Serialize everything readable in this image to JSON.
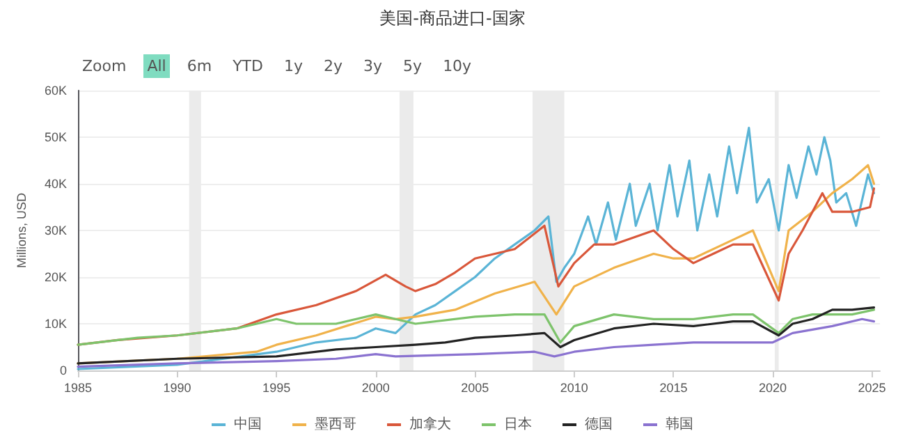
{
  "chart_data": {
    "type": "line",
    "title": "美国-商品进口-国家",
    "ylabel": "Millions, USD",
    "annotations": [
      "Zoom",
      "All",
      "6m",
      "YTD",
      "1y",
      "2y",
      "3y",
      "5y",
      "10y"
    ],
    "xlim": [
      1985,
      2025.4
    ],
    "xticks": [
      1985,
      1990,
      1995,
      2000,
      2005,
      2010,
      2015,
      2020,
      2025
    ],
    "ylim": [
      0,
      60000
    ],
    "yticks": [
      0,
      {
        "value": 10000,
        "label": "10K"
      },
      {
        "value": 20000,
        "label": "20K"
      },
      {
        "value": 30000,
        "label": "30K"
      },
      {
        "value": 40000,
        "label": "40K"
      },
      {
        "value": 50000,
        "label": "50K"
      },
      {
        "value": 60000,
        "label": "60K"
      }
    ],
    "grid": "y",
    "legend": "bottom",
    "marker": "none",
    "line_style": "solid",
    "bands": [
      {
        "axis": "x",
        "from": 1990.6,
        "to": 1991.2,
        "color": "#ebebeb"
      },
      {
        "axis": "x",
        "from": 2001.2,
        "to": 2001.9,
        "color": "#ebebeb"
      },
      {
        "axis": "x",
        "from": 2007.9,
        "to": 2009.5,
        "color": "#ebebeb"
      },
      {
        "axis": "x",
        "from": 2020.1,
        "to": 2020.3,
        "color": "#ebebeb"
      }
    ],
    "series": [
      {
        "name": "中国",
        "color": "#5ab4d6",
        "x": [
          1985,
          1990,
          1995,
          1997,
          1999,
          2000,
          2001,
          2002,
          2003,
          2004,
          2005,
          2006,
          2007,
          2008,
          2008.7,
          2009.1,
          2009.5,
          2010,
          2010.7,
          2011.1,
          2011.7,
          2012.1,
          2012.8,
          2013.1,
          2013.8,
          2014.2,
          2014.8,
          2015.2,
          2015.8,
          2016.2,
          2016.8,
          2017.2,
          2017.8,
          2018.2,
          2018.8,
          2019.2,
          2019.8,
          2020.3,
          2020.8,
          2021.2,
          2021.8,
          2022.2,
          2022.6,
          2022.9,
          2023.2,
          2023.7,
          2024.2,
          2024.8,
          2025.1
        ],
        "values": [
          300,
          1200,
          4000,
          6000,
          7000,
          9000,
          8000,
          12000,
          14000,
          17000,
          20000,
          24000,
          27000,
          30000,
          33000,
          19000,
          22000,
          25000,
          33000,
          27000,
          36000,
          28000,
          40000,
          31000,
          40000,
          30000,
          44000,
          33000,
          45000,
          30000,
          42000,
          33000,
          48000,
          38000,
          52000,
          36000,
          41000,
          30000,
          44000,
          37000,
          48000,
          42000,
          50000,
          45000,
          36000,
          38000,
          31000,
          42000,
          38000
        ]
      },
      {
        "name": "墨西哥",
        "color": "#f0b24a",
        "x": [
          1985,
          1990,
          1994,
          1995,
          1997,
          2000,
          2001,
          2002,
          2004,
          2006,
          2008,
          2009.1,
          2010,
          2012,
          2014,
          2015,
          2016,
          2018,
          2019,
          2020.3,
          2020.8,
          2022,
          2023,
          2024,
          2024.8,
          2025.1
        ],
        "values": [
          1500,
          2500,
          4000,
          5500,
          7500,
          11500,
          11000,
          11500,
          13000,
          16500,
          19000,
          12000,
          18000,
          22000,
          25000,
          24000,
          24000,
          28000,
          30000,
          17000,
          30000,
          34000,
          38000,
          41000,
          44000,
          40000
        ]
      },
      {
        "name": "加拿大",
        "color": "#d9573a",
        "x": [
          1985,
          1987,
          1990,
          1993,
          1995,
          1997,
          1999,
          2000.5,
          2001.5,
          2002,
          2003,
          2004,
          2005,
          2006,
          2007,
          2008.5,
          2009.2,
          2010,
          2011,
          2012,
          2014,
          2015,
          2016,
          2017,
          2018,
          2019,
          2020.3,
          2020.8,
          2021.5,
          2022.5,
          2023,
          2024,
          2024.9,
          2025.1
        ],
        "values": [
          5500,
          6500,
          7500,
          9000,
          12000,
          14000,
          17000,
          20500,
          18000,
          17000,
          18500,
          21000,
          24000,
          25000,
          26000,
          31000,
          18000,
          23000,
          27000,
          27000,
          30000,
          26000,
          23000,
          25000,
          27000,
          27000,
          15000,
          25000,
          30000,
          38000,
          34000,
          34000,
          35000,
          39000
        ]
      },
      {
        "name": "日本",
        "color": "#7dc36b",
        "x": [
          1985,
          1988,
          1990,
          1993,
          1995,
          1996,
          1998,
          2000,
          2001,
          2002,
          2005,
          2007,
          2008.5,
          2009.3,
          2010,
          2012,
          2014,
          2016,
          2018,
          2019,
          2020.3,
          2021,
          2022,
          2023,
          2024,
          2025.1
        ],
        "values": [
          5500,
          7000,
          7500,
          9000,
          11000,
          10000,
          10000,
          12000,
          11000,
          10000,
          11500,
          12000,
          12000,
          6000,
          9500,
          12000,
          11000,
          11000,
          12000,
          12000,
          8000,
          11000,
          12000,
          12000,
          12000,
          13000
        ]
      },
      {
        "name": "德国",
        "color": "#222222",
        "x": [
          1985,
          1990,
          1995,
          1998,
          2000,
          2002,
          2003.5,
          2005,
          2007,
          2008.5,
          2009.3,
          2010,
          2012,
          2014,
          2016,
          2018,
          2019,
          2020.3,
          2021,
          2022,
          2023,
          2024,
          2025.1
        ],
        "values": [
          1500,
          2500,
          3000,
          4500,
          5000,
          5500,
          6000,
          7000,
          7500,
          8000,
          5000,
          6500,
          9000,
          10000,
          9500,
          10500,
          10500,
          7500,
          10000,
          11000,
          13000,
          13000,
          13500
        ]
      },
      {
        "name": "韩国",
        "color": "#8a72d0",
        "x": [
          1985,
          1990,
          1995,
          1998,
          2000,
          2001,
          2005,
          2008,
          2009,
          2010,
          2012,
          2014,
          2016,
          2018,
          2020,
          2021,
          2023,
          2024.5,
          2025.1
        ],
        "values": [
          800,
          1500,
          2000,
          2500,
          3500,
          3000,
          3500,
          4000,
          3000,
          4000,
          5000,
          5500,
          6000,
          6000,
          6000,
          8000,
          9500,
          11000,
          10500
        ]
      }
    ]
  }
}
